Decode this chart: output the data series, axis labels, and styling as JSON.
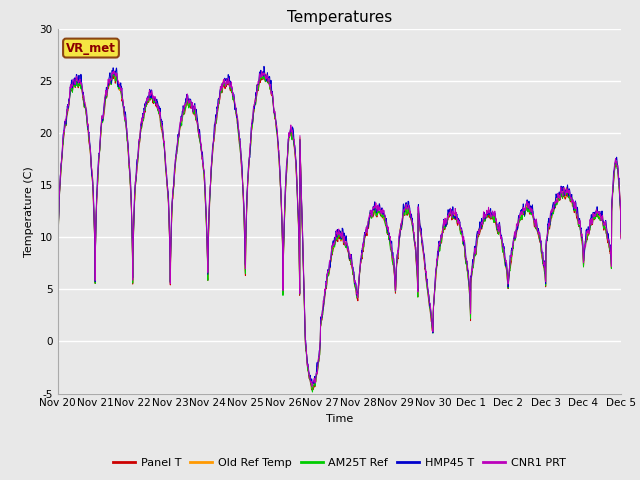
{
  "title": "Temperatures",
  "xlabel": "Time",
  "ylabel": "Temperature (C)",
  "ylim": [
    -5,
    30
  ],
  "series_names": [
    "Panel T",
    "Old Ref Temp",
    "AM25T Ref",
    "HMP45 T",
    "CNR1 PRT"
  ],
  "series_colors": [
    "#cc0000",
    "#ff9900",
    "#00cc00",
    "#0000cc",
    "#bb00bb"
  ],
  "station_label": "VR_met",
  "xtick_labels": [
    "Nov 20",
    "Nov 21",
    "Nov 22",
    "Nov 23",
    "Nov 24",
    "Nov 25",
    "Nov 26",
    "Nov 27",
    "Nov 28",
    "Nov 29",
    "Nov 30",
    "Dec 1",
    "Dec 2",
    "Dec 3",
    "Dec 4",
    "Dec 5"
  ],
  "ytick_labels": [
    "-5",
    "0",
    "5",
    "10",
    "15",
    "20",
    "25",
    "30"
  ],
  "ytick_values": [
    -5,
    0,
    5,
    10,
    15,
    20,
    25,
    30
  ],
  "fig_bg_color": "#e8e8e8",
  "plot_bg_color": "#e8e8e8",
  "grid_color": "#ffffff",
  "title_fontsize": 11,
  "label_fontsize": 8,
  "tick_fontsize": 7.5,
  "legend_fontsize": 8
}
